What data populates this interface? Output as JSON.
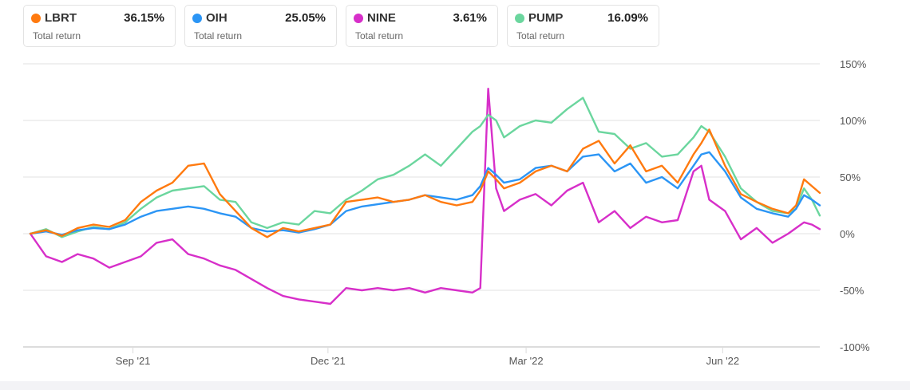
{
  "legend": [
    {
      "symbol": "LBRT",
      "value": "36.15%",
      "sub": "Total return",
      "color": "#ff7a0f"
    },
    {
      "symbol": "OIH",
      "value": "25.05%",
      "sub": "Total return",
      "color": "#2b95f5"
    },
    {
      "symbol": "NINE",
      "value": "3.61%",
      "sub": "Total return",
      "color": "#d72fc9"
    },
    {
      "symbol": "PUMP",
      "value": "16.09%",
      "sub": "Total return",
      "color": "#6bd69e"
    }
  ],
  "chart_data": {
    "type": "line",
    "title": "",
    "xlabel": "",
    "ylabel": "Total return",
    "ylim": [
      -100,
      150
    ],
    "y_ticks": [
      "150%",
      "100%",
      "50%",
      "0%",
      "-50%",
      "-100%"
    ],
    "y_tick_values": [
      150,
      100,
      50,
      0,
      -50,
      -100
    ],
    "x_ticks": [
      "Sep '21",
      "Dec '21",
      "Mar '22",
      "Jun '22"
    ],
    "x_tick_positions": [
      0.13,
      0.377,
      0.628,
      0.877
    ],
    "grid": true,
    "legend_position": "top",
    "x": [
      0,
      0.02,
      0.04,
      0.06,
      0.08,
      0.1,
      0.12,
      0.14,
      0.16,
      0.18,
      0.2,
      0.22,
      0.24,
      0.26,
      0.28,
      0.3,
      0.32,
      0.34,
      0.36,
      0.38,
      0.4,
      0.42,
      0.44,
      0.46,
      0.48,
      0.5,
      0.52,
      0.54,
      0.56,
      0.57,
      0.58,
      0.59,
      0.6,
      0.62,
      0.64,
      0.66,
      0.68,
      0.7,
      0.72,
      0.74,
      0.76,
      0.78,
      0.8,
      0.82,
      0.84,
      0.85,
      0.86,
      0.88,
      0.9,
      0.92,
      0.94,
      0.96,
      0.97,
      0.98,
      0.99,
      1.0
    ],
    "series": [
      {
        "name": "LBRT",
        "color": "#ff7a0f",
        "values": [
          0,
          3,
          -2,
          5,
          8,
          6,
          12,
          28,
          38,
          45,
          60,
          62,
          35,
          20,
          5,
          -3,
          5,
          2,
          5,
          8,
          28,
          30,
          32,
          28,
          30,
          34,
          28,
          25,
          28,
          38,
          55,
          48,
          40,
          45,
          55,
          60,
          55,
          75,
          82,
          62,
          78,
          55,
          60,
          45,
          70,
          80,
          92,
          60,
          35,
          28,
          22,
          18,
          25,
          48,
          42,
          36
        ]
      },
      {
        "name": "OIH",
        "color": "#2b95f5",
        "values": [
          0,
          2,
          -1,
          3,
          5,
          4,
          8,
          15,
          20,
          22,
          24,
          22,
          18,
          15,
          5,
          2,
          3,
          1,
          4,
          8,
          20,
          24,
          26,
          28,
          30,
          34,
          32,
          30,
          34,
          42,
          58,
          52,
          45,
          48,
          58,
          60,
          55,
          68,
          70,
          55,
          62,
          45,
          50,
          40,
          60,
          70,
          72,
          55,
          32,
          22,
          18,
          15,
          22,
          34,
          30,
          25
        ]
      },
      {
        "name": "NINE",
        "color": "#d72fc9",
        "values": [
          0,
          -20,
          -25,
          -18,
          -22,
          -30,
          -25,
          -20,
          -8,
          -5,
          -18,
          -22,
          -28,
          -32,
          -40,
          -48,
          -55,
          -58,
          -60,
          -62,
          -48,
          -50,
          -48,
          -50,
          -48,
          -52,
          -48,
          -50,
          -52,
          -48,
          128,
          40,
          20,
          30,
          35,
          25,
          38,
          45,
          10,
          20,
          5,
          15,
          10,
          12,
          55,
          60,
          30,
          20,
          -5,
          5,
          -8,
          0,
          5,
          10,
          8,
          4
        ]
      },
      {
        "name": "PUMP",
        "color": "#6bd69e",
        "values": [
          0,
          4,
          -3,
          2,
          6,
          4,
          10,
          22,
          32,
          38,
          40,
          42,
          30,
          28,
          10,
          5,
          10,
          8,
          20,
          18,
          30,
          38,
          48,
          52,
          60,
          70,
          60,
          75,
          90,
          95,
          105,
          100,
          85,
          95,
          100,
          98,
          110,
          120,
          90,
          88,
          75,
          80,
          68,
          70,
          85,
          95,
          90,
          68,
          40,
          28,
          20,
          18,
          22,
          40,
          30,
          16
        ]
      }
    ]
  }
}
